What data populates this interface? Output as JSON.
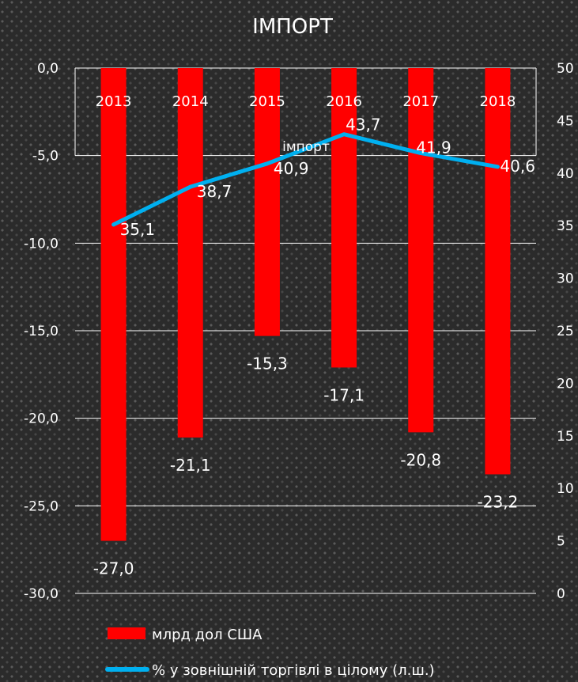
{
  "chart_data": {
    "type": "bar",
    "title": "ІМПОРТ",
    "categories": [
      "2013",
      "2014",
      "2015",
      "2016",
      "2017",
      "2018"
    ],
    "series": [
      {
        "name": "млрд дол США",
        "type": "bar",
        "axis": "left",
        "values": [
          -27.0,
          -21.1,
          -15.3,
          -17.1,
          -20.8,
          -23.2
        ],
        "labels": [
          "-27,0",
          "-21,1",
          "-15,3",
          "-17,1",
          "-20,8",
          "-23,2"
        ],
        "color": "#ff0000"
      },
      {
        "name": "% у зовнішній торгівлі в цілому (л.ш.)",
        "type": "line",
        "axis": "right",
        "values": [
          35.1,
          38.7,
          40.9,
          43.7,
          41.9,
          40.6
        ],
        "labels": [
          "35,1",
          "38,7",
          "40,9",
          "43,7",
          "41,9",
          "40,6"
        ],
        "color": "#00b0f0"
      }
    ],
    "left_axis": {
      "range": [
        -30,
        0
      ],
      "ticks": [
        0,
        -5,
        -10,
        -15,
        -20,
        -25,
        -30
      ],
      "tick_labels": [
        "0,0",
        "-5,0",
        "-10,0",
        "-15,0",
        "-20,0",
        "-25,0",
        "-30,0"
      ]
    },
    "right_axis": {
      "range": [
        0,
        50
      ],
      "ticks": [
        50,
        45,
        40,
        35,
        30,
        25,
        20,
        15,
        10,
        5,
        0
      ],
      "tick_labels": [
        "50",
        "45",
        "40",
        "35",
        "30",
        "25",
        "20",
        "15",
        "10",
        "5",
        "0"
      ]
    },
    "annotation": "імпорт",
    "grid": true,
    "legend_position": "bottom"
  }
}
